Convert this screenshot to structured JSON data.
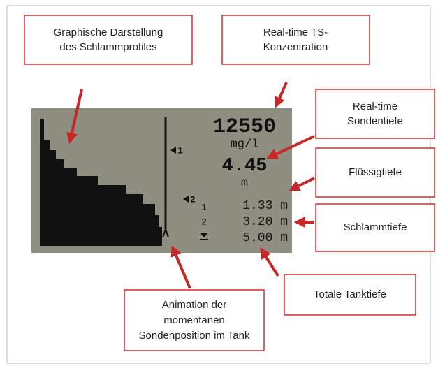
{
  "callouts": [
    {
      "lines": [
        "Graphische Darstellung",
        "des Schlammprofiles"
      ]
    },
    {
      "lines": [
        "Real-time TS-",
        "Konzentration"
      ]
    },
    {
      "lines": [
        "Real-time",
        "Sondentiefe"
      ]
    },
    {
      "lines": [
        "Flüssigtiefe"
      ]
    },
    {
      "lines": [
        "Schlammtiefe"
      ]
    },
    {
      "lines": [
        "Totale Tanktiefe"
      ]
    },
    {
      "lines": [
        "Animation der",
        "momentanen",
        "Sondenposition im Tank"
      ]
    }
  ],
  "display": {
    "concentration": "12550",
    "concentration_unit": "mg/l",
    "probe_depth": "4.45",
    "probe_depth_unit": "m",
    "marker_1": "1",
    "marker_2": "2",
    "rows": [
      {
        "label": "1",
        "value": "1.33 m"
      },
      {
        "label": "2",
        "value": "3.20 m"
      },
      {
        "value": "5.00 m"
      }
    ]
  }
}
